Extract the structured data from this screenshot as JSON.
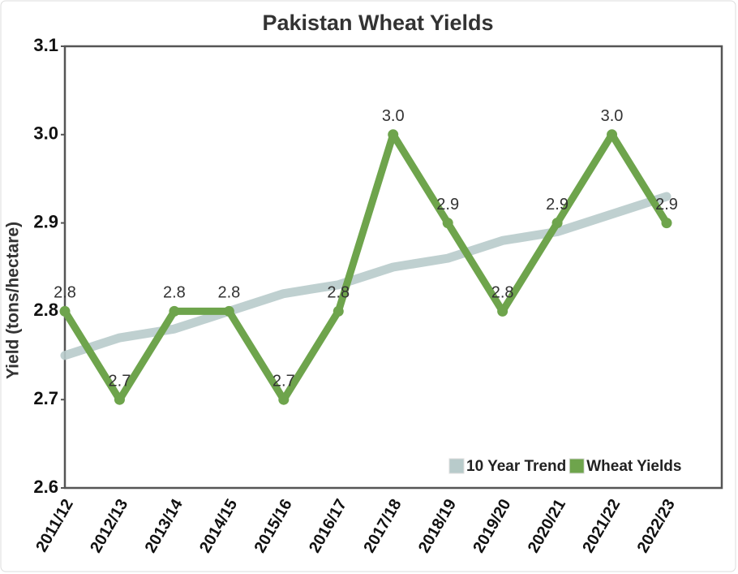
{
  "chart_data": {
    "type": "line",
    "title": "Pakistan Wheat Yields",
    "y_label": "Yield (tons/hectare)",
    "categories": [
      "2011/12",
      "2012/13",
      "2013/14",
      "2014/15",
      "2015/16",
      "2016/17",
      "2017/18",
      "2018/19",
      "2019/20",
      "2020/21",
      "2021/22",
      "2022/23"
    ],
    "series": [
      {
        "name": "10 Year Trend",
        "color": "#b8cbcb",
        "values": [
          2.75,
          2.77,
          2.78,
          2.8,
          2.82,
          2.83,
          2.85,
          2.86,
          2.88,
          2.89,
          2.91,
          2.93
        ]
      },
      {
        "name": "Wheat Yields",
        "color": "#6ea44c",
        "values": [
          2.8,
          2.7,
          2.8,
          2.8,
          2.7,
          2.8,
          3.0,
          2.9,
          2.8,
          2.9,
          3.0,
          2.9
        ],
        "value_labels": [
          "2.8",
          "2.7",
          "2.8",
          "2.8",
          "2.7",
          "2.8",
          "3.0",
          "2.9",
          "2.8",
          "2.9",
          "3.0",
          "2.9"
        ]
      }
    ],
    "ylim": [
      2.6,
      3.1
    ],
    "yticks": [
      2.6,
      2.7,
      2.8,
      2.9,
      {
        "value": 3,
        "label": "3.0"
      },
      3.1
    ],
    "legend": "lower right"
  }
}
